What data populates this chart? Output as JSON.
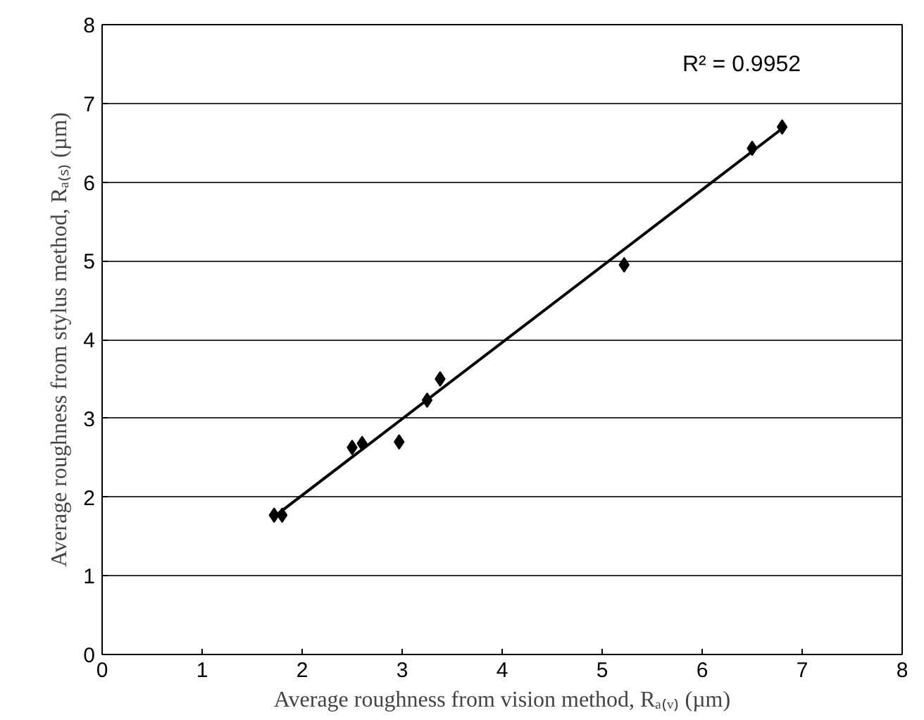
{
  "chart_data": {
    "type": "scatter",
    "xlabel": "Average roughness from vision method, Rₐ₍ᵥ₎ (µm)",
    "ylabel": "Average roughness from stylus method, Rₐ₍ₛ₎ (µm)",
    "series": [
      {
        "color": "#000000",
        "marker": "diamond",
        "x": [
          1.72,
          1.8,
          2.5,
          2.6,
          2.97,
          3.25,
          3.38,
          5.22,
          6.5,
          6.8
        ],
        "values": [
          1.77,
          1.77,
          2.63,
          2.68,
          2.7,
          3.23,
          3.5,
          4.95,
          6.43,
          6.7
        ]
      },
      {
        "type": "line",
        "color": "#000000",
        "marker": "none",
        "x": [
          1.75,
          6.8
        ],
        "values": [
          1.78,
          6.68
        ]
      }
    ],
    "annotations": [
      "R² = 0.9952"
    ],
    "xlim": [
      0,
      8
    ],
    "ylim": [
      0,
      8
    ],
    "xticks": [
      0,
      1,
      2,
      3,
      4,
      5,
      6,
      7,
      8
    ],
    "yticks": [
      0,
      1,
      2,
      3,
      4,
      5,
      6,
      7,
      8
    ],
    "grid": "y"
  }
}
